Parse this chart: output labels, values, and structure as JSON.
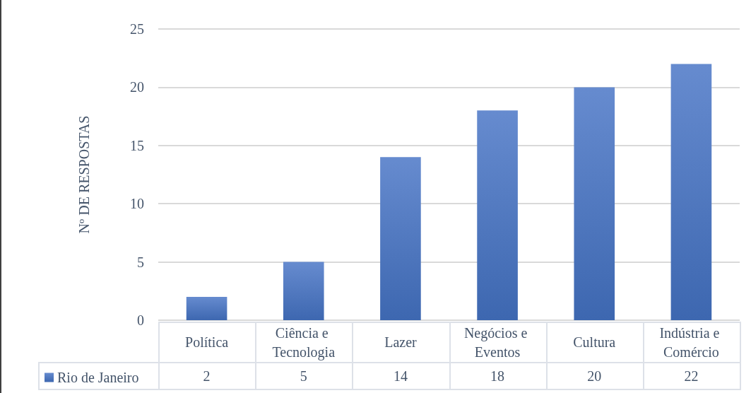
{
  "chart_data": {
    "type": "bar",
    "ylabel": "Nº DE RESPOSTAS",
    "categories": [
      "Política",
      "Ciência e Tecnologia",
      "Lazer",
      "Negócios e Eventos",
      "Cultura",
      "Indústria e Comércio"
    ],
    "series": [
      {
        "name": "Rio de Janeiro",
        "color": "#4472c4",
        "values": [
          2,
          5,
          14,
          18,
          20,
          22
        ]
      }
    ],
    "ylim": [
      0,
      25
    ],
    "yticks": [
      0,
      5,
      10,
      15,
      20,
      25
    ],
    "grid": "y",
    "legend": "bottom left",
    "data_labels": true
  }
}
